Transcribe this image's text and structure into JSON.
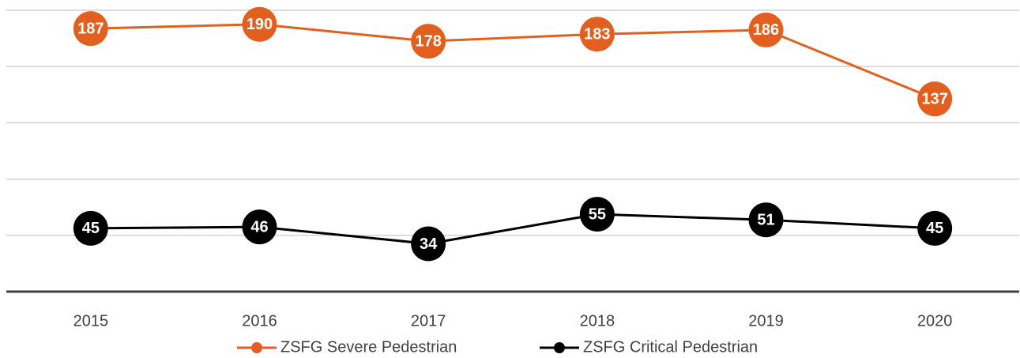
{
  "chart_data": {
    "type": "line",
    "categories": [
      "2015",
      "2016",
      "2017",
      "2018",
      "2019",
      "2020"
    ],
    "series": [
      {
        "name": "ZSFG Severe Pedestrian",
        "color": "#e2601f",
        "values": [
          187,
          190,
          178,
          183,
          186,
          137
        ]
      },
      {
        "name": "ZSFG Critical Pedestrian",
        "color": "#000000",
        "values": [
          45,
          46,
          34,
          55,
          51,
          45
        ]
      }
    ],
    "ylim": [
      0,
      200
    ],
    "yticks": [
      0,
      40,
      80,
      120,
      160,
      200
    ],
    "grid": true,
    "legend": "bottom"
  }
}
